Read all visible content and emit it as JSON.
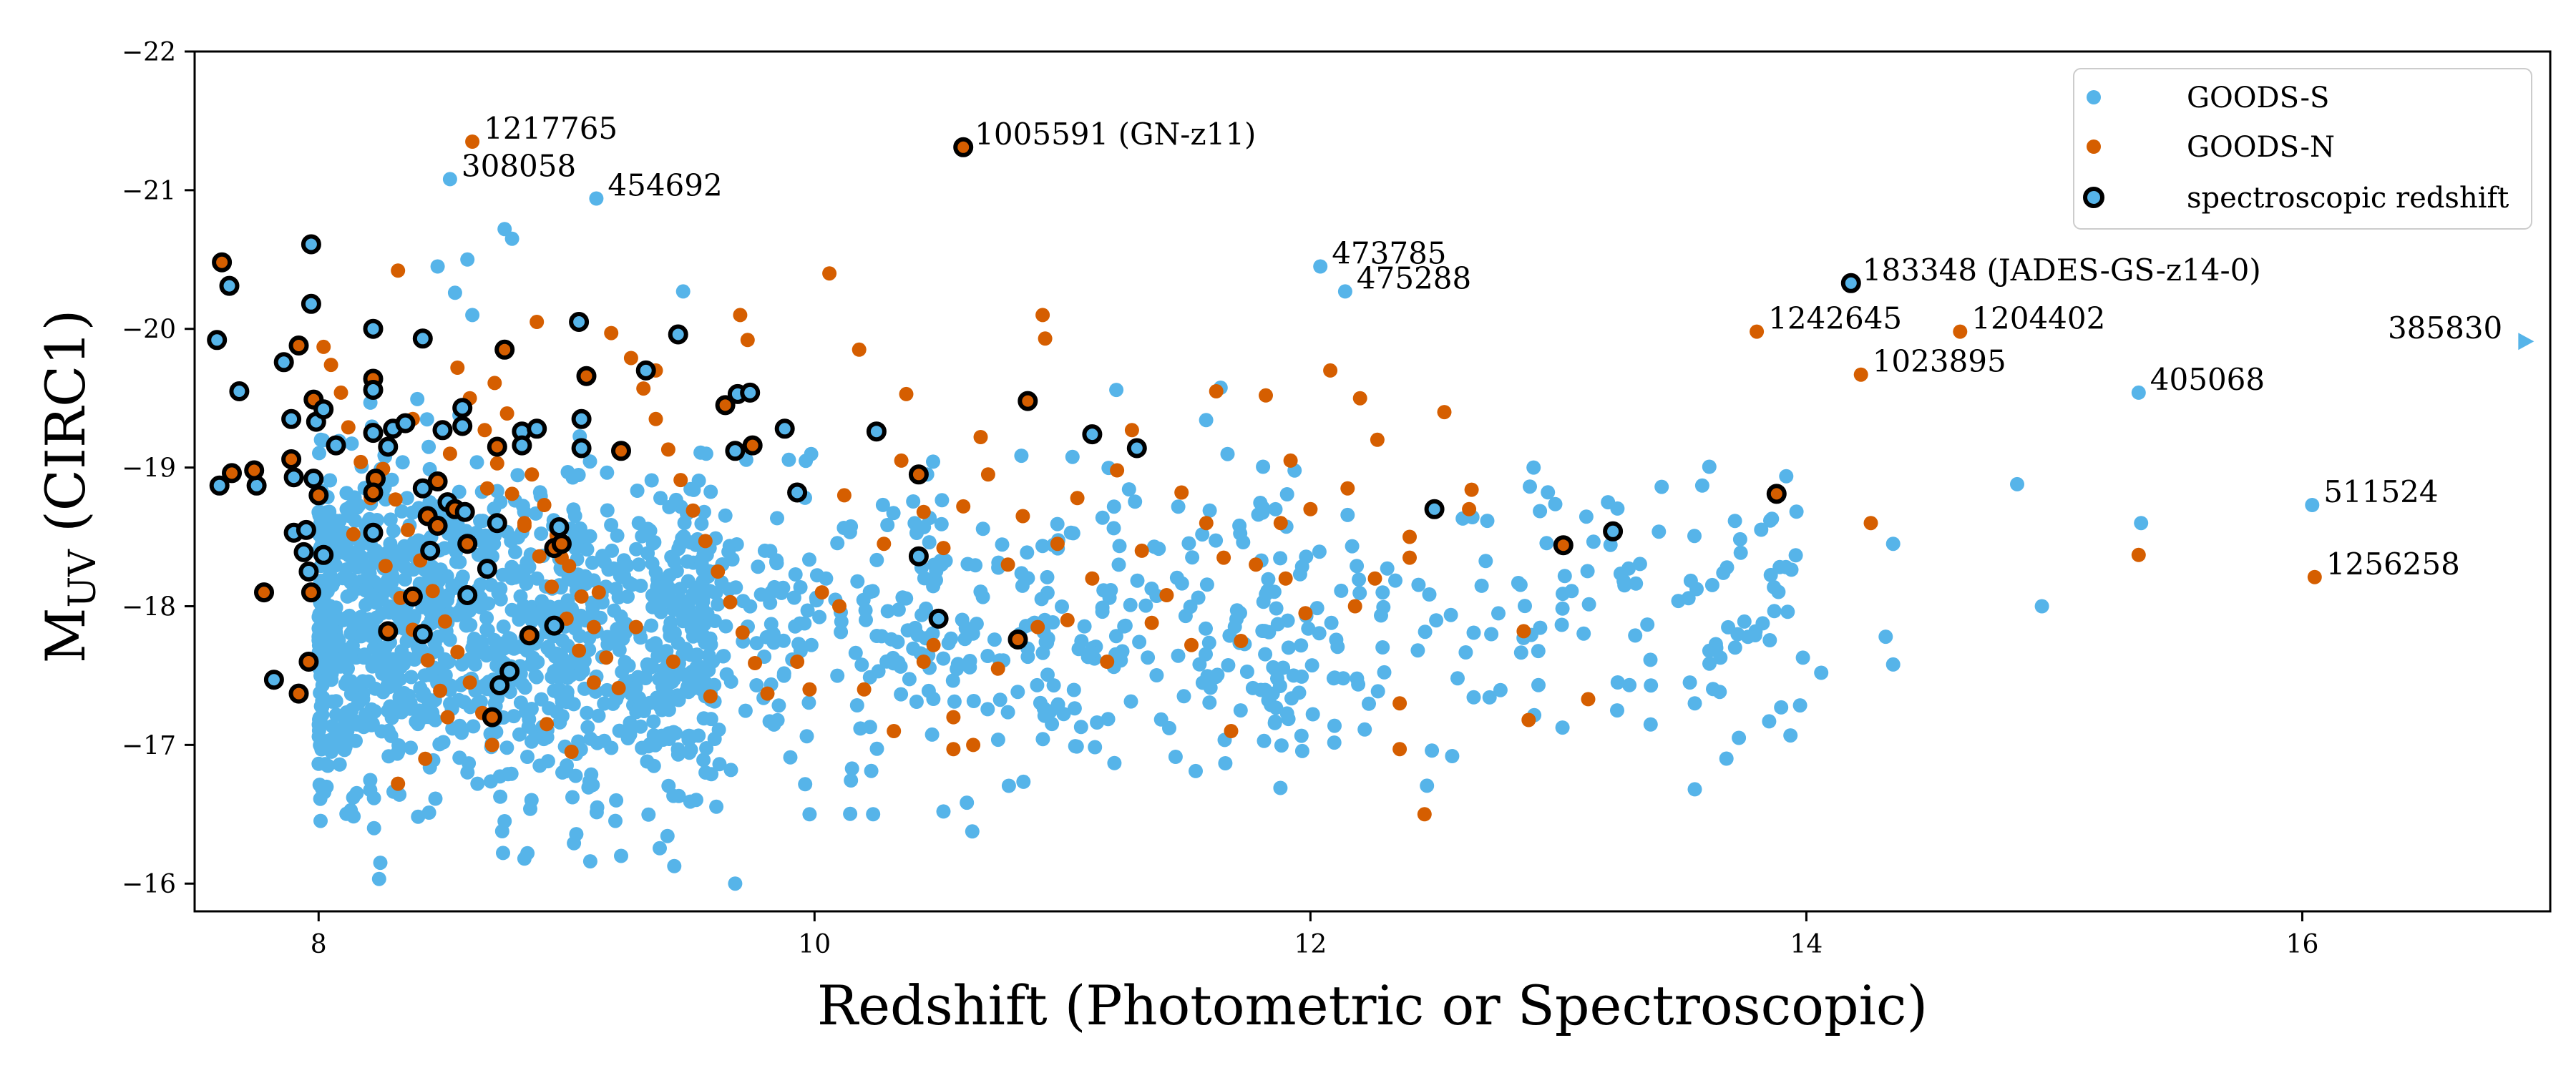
{
  "chart_data": {
    "type": "scatter",
    "title": "",
    "xlabel": "Redshift (Photometric or Spectroscopic)",
    "ylabel_main": "M",
    "ylabel_sub": "UV",
    "ylabel_rest": " (CIRC1)",
    "xlim": [
      7.5,
      17.0
    ],
    "ylim": [
      -15.8,
      -22.0
    ],
    "xticks": [
      8,
      10,
      12,
      14,
      16
    ],
    "xtick_labels": [
      "8",
      "10",
      "12",
      "14",
      "16"
    ],
    "yticks": [
      -16,
      -17,
      -18,
      -19,
      -20,
      -21,
      -22
    ],
    "ytick_labels": [
      "−16",
      "−17",
      "−18",
      "−19",
      "−20",
      "−21",
      "−22"
    ],
    "legend_position": "top-right",
    "legend": [
      {
        "label": "GOODS-S",
        "kind": "goods-s"
      },
      {
        "label": "GOODS-N",
        "kind": "goods-n"
      },
      {
        "label": "spectroscopic redshift",
        "kind": "spec"
      }
    ],
    "colors": {
      "goods_s": "#56B4E9",
      "goods_n": "#D55E00",
      "spec_edge": "#000000"
    },
    "labeled_points": [
      {
        "id": "1217765",
        "label": "1217765",
        "x": 8.62,
        "y": -21.35,
        "survey": "N",
        "spec": false,
        "anchor": "right"
      },
      {
        "id": "308058",
        "label": "308058",
        "x": 8.53,
        "y": -21.08,
        "survey": "S",
        "spec": false,
        "anchor": "right"
      },
      {
        "id": "454692",
        "label": "454692",
        "x": 9.12,
        "y": -20.94,
        "survey": "S",
        "spec": false,
        "anchor": "right"
      },
      {
        "id": "1005591",
        "label": "1005591 (GN-z11)",
        "x": 10.6,
        "y": -21.31,
        "survey": "N",
        "spec": true,
        "anchor": "right"
      },
      {
        "id": "473785",
        "label": "473785",
        "x": 12.04,
        "y": -20.45,
        "survey": "S",
        "spec": false,
        "anchor": "right"
      },
      {
        "id": "475288",
        "label": "475288",
        "x": 12.14,
        "y": -20.27,
        "survey": "S",
        "spec": false,
        "anchor": "right"
      },
      {
        "id": "183348",
        "label": "183348 (JADES-GS-z14-0)",
        "x": 14.18,
        "y": -20.33,
        "survey": "S",
        "spec": true,
        "anchor": "right"
      },
      {
        "id": "1242645",
        "label": "1242645",
        "x": 13.8,
        "y": -19.98,
        "survey": "N",
        "spec": false,
        "anchor": "right"
      },
      {
        "id": "1204402",
        "label": "1204402",
        "x": 14.62,
        "y": -19.98,
        "survey": "N",
        "spec": false,
        "anchor": "right"
      },
      {
        "id": "1023895",
        "label": "1023895",
        "x": 14.22,
        "y": -19.67,
        "survey": "N",
        "spec": false,
        "anchor": "right"
      },
      {
        "id": "405068",
        "label": "405068",
        "x": 15.34,
        "y": -19.54,
        "survey": "S",
        "spec": false,
        "anchor": "right"
      },
      {
        "id": "385830",
        "label": "385830",
        "x": 16.9,
        "y": -19.91,
        "survey": "S",
        "spec": false,
        "anchor": "left",
        "marker": "triangle"
      },
      {
        "id": "511524",
        "label": "511524",
        "x": 16.04,
        "y": -18.73,
        "survey": "S",
        "spec": false,
        "anchor": "right"
      },
      {
        "id": "1256258",
        "label": "1256258",
        "x": 16.05,
        "y": -18.21,
        "survey": "N",
        "spec": false,
        "anchor": "right"
      }
    ],
    "spectroscopic_points": [
      [
        7.61,
        -20.48
      ],
      [
        7.64,
        -20.31
      ],
      [
        7.59,
        -19.92
      ],
      [
        7.68,
        -19.55
      ],
      [
        7.65,
        -18.96
      ],
      [
        7.6,
        -18.87
      ],
      [
        7.75,
        -18.87
      ],
      [
        7.74,
        -18.98
      ],
      [
        7.78,
        -18.1
      ],
      [
        7.82,
        -17.47
      ],
      [
        7.86,
        -19.76
      ],
      [
        7.89,
        -19.35
      ],
      [
        7.92,
        -19.88
      ],
      [
        7.9,
        -18.93
      ],
      [
        7.89,
        -19.06
      ],
      [
        7.9,
        -18.53
      ],
      [
        7.92,
        -17.37
      ],
      [
        7.94,
        -18.39
      ],
      [
        7.95,
        -18.55
      ],
      [
        7.96,
        -18.25
      ],
      [
        7.97,
        -18.1
      ],
      [
        7.96,
        -17.6
      ],
      [
        7.97,
        -20.61
      ],
      [
        7.97,
        -20.18
      ],
      [
        7.98,
        -19.49
      ],
      [
        7.99,
        -19.33
      ],
      [
        8.02,
        -19.42
      ],
      [
        7.98,
        -18.92
      ],
      [
        8.0,
        -18.8
      ],
      [
        8.07,
        -19.16
      ],
      [
        8.02,
        -18.37
      ],
      [
        8.22,
        -20.0
      ],
      [
        8.22,
        -19.64
      ],
      [
        8.22,
        -19.56
      ],
      [
        8.22,
        -19.25
      ],
      [
        8.23,
        -18.92
      ],
      [
        8.22,
        -18.82
      ],
      [
        8.22,
        -18.53
      ],
      [
        8.28,
        -19.15
      ],
      [
        8.3,
        -19.28
      ],
      [
        8.28,
        -17.82
      ],
      [
        8.35,
        -19.32
      ],
      [
        8.38,
        -18.07
      ],
      [
        8.42,
        -18.85
      ],
      [
        8.44,
        -18.65
      ],
      [
        8.42,
        -17.8
      ],
      [
        8.42,
        -19.93
      ],
      [
        8.45,
        -18.4
      ],
      [
        8.48,
        -18.58
      ],
      [
        8.48,
        -18.9
      ],
      [
        8.5,
        -19.27
      ],
      [
        8.52,
        -18.75
      ],
      [
        8.55,
        -18.7
      ],
      [
        8.58,
        -19.43
      ],
      [
        8.58,
        -19.3
      ],
      [
        8.59,
        -18.68
      ],
      [
        8.6,
        -18.45
      ],
      [
        8.6,
        -18.08
      ],
      [
        8.68,
        -18.27
      ],
      [
        8.72,
        -18.6
      ],
      [
        8.7,
        -17.2
      ],
      [
        8.73,
        -17.43
      ],
      [
        8.77,
        -17.53
      ],
      [
        8.72,
        -19.15
      ],
      [
        8.75,
        -19.85
      ],
      [
        8.82,
        -19.26
      ],
      [
        8.82,
        -19.16
      ],
      [
        8.88,
        -19.28
      ],
      [
        8.85,
        -17.79
      ],
      [
        8.95,
        -17.86
      ],
      [
        8.95,
        -18.42
      ],
      [
        8.97,
        -18.57
      ],
      [
        8.98,
        -18.45
      ],
      [
        9.05,
        -20.05
      ],
      [
        9.06,
        -19.35
      ],
      [
        9.06,
        -19.14
      ],
      [
        9.08,
        -19.66
      ],
      [
        9.22,
        -19.12
      ],
      [
        9.32,
        -19.7
      ],
      [
        9.45,
        -19.96
      ],
      [
        9.64,
        -19.45
      ],
      [
        9.68,
        -19.12
      ],
      [
        9.69,
        -19.53
      ],
      [
        9.74,
        -19.54
      ],
      [
        9.75,
        -19.16
      ],
      [
        9.88,
        -19.28
      ],
      [
        9.93,
        -18.82
      ],
      [
        10.25,
        -19.26
      ],
      [
        10.42,
        -18.95
      ],
      [
        10.42,
        -18.36
      ],
      [
        10.5,
        -17.91
      ],
      [
        10.82,
        -17.76
      ],
      [
        10.86,
        -19.48
      ],
      [
        11.12,
        -19.24
      ],
      [
        11.3,
        -19.14
      ],
      [
        12.5,
        -18.7
      ],
      [
        13.02,
        -18.44
      ],
      [
        13.22,
        -18.54
      ],
      [
        13.88,
        -18.81
      ]
    ],
    "goods_n_points": [
      [
        8.02,
        -19.87
      ],
      [
        8.05,
        -19.74
      ],
      [
        8.09,
        -19.54
      ],
      [
        8.12,
        -19.29
      ],
      [
        8.17,
        -19.04
      ],
      [
        8.21,
        -18.78
      ],
      [
        8.14,
        -18.52
      ],
      [
        8.27,
        -18.29
      ],
      [
        8.33,
        -18.06
      ],
      [
        8.38,
        -17.83
      ],
      [
        8.44,
        -17.61
      ],
      [
        8.49,
        -17.39
      ],
      [
        8.32,
        -20.42
      ],
      [
        8.56,
        -19.72
      ],
      [
        8.61,
        -19.5
      ],
      [
        8.67,
        -19.27
      ],
      [
        8.72,
        -19.03
      ],
      [
        8.78,
        -18.81
      ],
      [
        8.83,
        -18.58
      ],
      [
        8.89,
        -18.36
      ],
      [
        8.94,
        -18.14
      ],
      [
        9.0,
        -17.91
      ],
      [
        9.05,
        -17.68
      ],
      [
        9.11,
        -17.45
      ],
      [
        8.26,
        -18.99
      ],
      [
        8.31,
        -18.77
      ],
      [
        8.36,
        -18.55
      ],
      [
        8.41,
        -18.33
      ],
      [
        8.46,
        -18.11
      ],
      [
        8.51,
        -17.89
      ],
      [
        8.56,
        -17.67
      ],
      [
        8.61,
        -17.45
      ],
      [
        8.66,
        -17.23
      ],
      [
        8.71,
        -19.61
      ],
      [
        8.76,
        -19.39
      ],
      [
        8.81,
        -19.17
      ],
      [
        8.86,
        -18.95
      ],
      [
        8.91,
        -18.73
      ],
      [
        8.96,
        -18.51
      ],
      [
        9.01,
        -18.29
      ],
      [
        9.06,
        -18.07
      ],
      [
        9.11,
        -17.85
      ],
      [
        9.16,
        -17.63
      ],
      [
        9.21,
        -17.41
      ],
      [
        9.26,
        -19.79
      ],
      [
        9.31,
        -19.57
      ],
      [
        9.36,
        -19.35
      ],
      [
        9.41,
        -19.13
      ],
      [
        9.46,
        -18.91
      ],
      [
        9.51,
        -18.69
      ],
      [
        9.56,
        -18.47
      ],
      [
        9.61,
        -18.25
      ],
      [
        9.66,
        -18.03
      ],
      [
        9.71,
        -17.81
      ],
      [
        9.76,
        -17.59
      ],
      [
        9.81,
        -17.37
      ],
      [
        8.38,
        -19.35
      ],
      [
        8.53,
        -19.1
      ],
      [
        8.68,
        -18.85
      ],
      [
        8.83,
        -18.6
      ],
      [
        8.98,
        -18.35
      ],
      [
        9.13,
        -18.1
      ],
      [
        9.28,
        -17.85
      ],
      [
        9.43,
        -17.6
      ],
      [
        9.58,
        -17.35
      ],
      [
        8.88,
        -20.05
      ],
      [
        9.18,
        -19.97
      ],
      [
        9.36,
        -19.7
      ],
      [
        9.7,
        -20.1
      ],
      [
        9.73,
        -19.92
      ],
      [
        8.52,
        -17.2
      ],
      [
        8.7,
        -17.0
      ],
      [
        8.92,
        -17.15
      ],
      [
        9.02,
        -16.95
      ],
      [
        8.32,
        -16.72
      ],
      [
        8.43,
        -16.9
      ],
      [
        9.93,
        -17.6
      ],
      [
        9.98,
        -17.4
      ],
      [
        10.03,
        -18.1
      ],
      [
        10.06,
        -20.4
      ],
      [
        10.12,
        -18.8
      ],
      [
        10.18,
        -19.85
      ],
      [
        10.28,
        -18.45
      ],
      [
        10.35,
        -19.05
      ],
      [
        10.37,
        -19.53
      ],
      [
        10.44,
        -18.68
      ],
      [
        10.48,
        -17.72
      ],
      [
        10.52,
        -18.42
      ],
      [
        10.56,
        -17.2
      ],
      [
        10.6,
        -18.72
      ],
      [
        10.64,
        -17.0
      ],
      [
        10.67,
        -19.22
      ],
      [
        10.7,
        -18.95
      ],
      [
        10.74,
        -17.55
      ],
      [
        10.78,
        -18.3
      ],
      [
        10.84,
        -18.65
      ],
      [
        10.9,
        -17.85
      ],
      [
        10.92,
        -20.1
      ],
      [
        10.93,
        -19.93
      ],
      [
        10.98,
        -18.45
      ],
      [
        11.02,
        -17.9
      ],
      [
        11.06,
        -18.78
      ],
      [
        11.12,
        -18.2
      ],
      [
        11.18,
        -17.6
      ],
      [
        11.22,
        -18.98
      ],
      [
        11.28,
        -19.27
      ],
      [
        11.32,
        -18.4
      ],
      [
        11.36,
        -17.88
      ],
      [
        11.42,
        -18.08
      ],
      [
        11.48,
        -18.82
      ],
      [
        11.52,
        -17.72
      ],
      [
        11.58,
        -18.6
      ],
      [
        11.62,
        -19.55
      ],
      [
        11.65,
        -18.35
      ],
      [
        11.68,
        -17.1
      ],
      [
        11.72,
        -17.75
      ],
      [
        11.78,
        -18.3
      ],
      [
        11.82,
        -19.52
      ],
      [
        11.88,
        -18.6
      ],
      [
        11.92,
        -19.05
      ],
      [
        11.98,
        -17.95
      ],
      [
        12.08,
        -19.7
      ],
      [
        12.15,
        -18.85
      ],
      [
        12.2,
        -19.5
      ],
      [
        12.26,
        -18.2
      ],
      [
        12.36,
        -17.3
      ],
      [
        12.36,
        -16.97
      ],
      [
        12.4,
        -18.35
      ],
      [
        12.46,
        -16.5
      ],
      [
        12.54,
        -19.4
      ],
      [
        12.64,
        -18.7
      ],
      [
        12.86,
        -17.82
      ],
      [
        12.88,
        -17.18
      ],
      [
        13.12,
        -17.33
      ],
      [
        14.26,
        -18.6
      ],
      [
        15.34,
        -18.37
      ],
      [
        12.27,
        -19.2
      ],
      [
        12.18,
        -18.0
      ],
      [
        12.4,
        -18.5
      ],
      [
        12.65,
        -18.84
      ],
      [
        11.9,
        -18.2
      ],
      [
        12.0,
        -18.7
      ],
      [
        10.32,
        -17.1
      ],
      [
        10.56,
        -16.97
      ],
      [
        10.44,
        -17.6
      ],
      [
        10.2,
        -17.4
      ],
      [
        10.1,
        -18.0
      ]
    ]
  }
}
